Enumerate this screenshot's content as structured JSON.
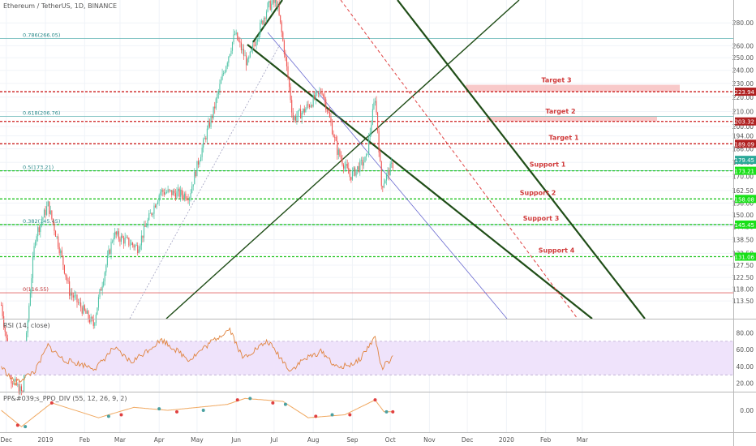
{
  "header": {
    "symbol": "Ethereum / TetherUS, 1D, BINANCE"
  },
  "colors": {
    "candle_up": "#4fc3a6",
    "candle_down": "#ef5350",
    "resistance": "#cc1f1f",
    "support": "#22c422",
    "trend_dark": "#1f4d17",
    "fib": "#5fb3b3",
    "rsi_line": "#e0843f",
    "rsi_band": "#efe3fb",
    "ppo_line": "#f0a860"
  },
  "chart_data": [
    {
      "type": "candlestick",
      "title": "Ethereum / TetherUS, 1D, BINANCE",
      "x_labels": [
        "Dec",
        "2019",
        "Feb",
        "Mar",
        "Apr",
        "May",
        "Jun",
        "Jul",
        "Aug",
        "Sep",
        "Oct",
        "Nov",
        "Dec",
        "2020",
        "Feb",
        "Mar"
      ],
      "y_axis": {
        "scale": "log",
        "ylim": [
          111,
          300
        ],
        "ticks": [
          280.0,
          260.0,
          250.0,
          240.0,
          230.0,
          220.0,
          210.0,
          200.0,
          194.0,
          186.0,
          178.0,
          170.0,
          162.5,
          156.0,
          150.0,
          144.5,
          138.5,
          132.5,
          127.5,
          122.5,
          118.0,
          113.5
        ]
      },
      "close_series_approx": [
        {
          "t": "2018-11-27",
          "v": 112
        },
        {
          "t": "2018-12-05",
          "v": 88
        },
        {
          "t": "2018-12-14",
          "v": 84
        },
        {
          "t": "2018-12-24",
          "v": 140
        },
        {
          "t": "2019-01-03",
          "v": 155
        },
        {
          "t": "2019-01-20",
          "v": 117
        },
        {
          "t": "2019-02-08",
          "v": 105
        },
        {
          "t": "2019-02-24",
          "v": 141
        },
        {
          "t": "2019-03-15",
          "v": 135
        },
        {
          "t": "2019-04-02",
          "v": 162
        },
        {
          "t": "2019-04-25",
          "v": 160
        },
        {
          "t": "2019-05-14",
          "v": 210
        },
        {
          "t": "2019-05-31",
          "v": 270
        },
        {
          "t": "2019-06-10",
          "v": 245
        },
        {
          "t": "2019-06-26",
          "v": 295
        },
        {
          "t": "2019-07-03",
          "v": 300
        },
        {
          "t": "2019-07-16",
          "v": 205
        },
        {
          "t": "2019-07-24",
          "v": 210
        },
        {
          "t": "2019-08-08",
          "v": 225
        },
        {
          "t": "2019-08-20",
          "v": 185
        },
        {
          "t": "2019-08-30",
          "v": 170
        },
        {
          "t": "2019-09-12",
          "v": 180
        },
        {
          "t": "2019-09-19",
          "v": 220
        },
        {
          "t": "2019-09-24",
          "v": 165
        },
        {
          "t": "2019-10-03",
          "v": 177
        }
      ],
      "price_labels": [
        {
          "value": "223.94",
          "kind": "resistance"
        },
        {
          "value": "203.32",
          "kind": "resistance"
        },
        {
          "value": "189.09",
          "kind": "resistance"
        },
        {
          "value": "179.45",
          "kind": "current"
        },
        {
          "value": "173.21",
          "kind": "support"
        },
        {
          "value": "158.08",
          "kind": "support"
        },
        {
          "value": "145.45",
          "kind": "support"
        },
        {
          "value": "131.06",
          "kind": "support"
        }
      ],
      "fib_levels": [
        {
          "text": "0.786(266.05)",
          "price": 266.05
        },
        {
          "text": "0.618(206.76)",
          "price": 206.76
        },
        {
          "text": "0.5(173.21)",
          "price": 173.21
        },
        {
          "text": "0.382(145.45)",
          "price": 145.45
        },
        {
          "text": "0(116.55)",
          "price": 116.55
        }
      ],
      "resistance_levels": [
        {
          "text": "Target 3",
          "price": 223.94
        },
        {
          "text": "Target 2",
          "price": 203.32
        },
        {
          "text": "Target 1",
          "price": 189.09
        }
      ],
      "support_levels": [
        {
          "text": "Support 1",
          "price": 173.21
        },
        {
          "text": "Support 2",
          "price": 158.08
        },
        {
          "text": "Support 3",
          "price": 145.45
        },
        {
          "text": "Support 4",
          "price": 131.06
        }
      ]
    },
    {
      "type": "line",
      "title": "RSI (14, close)",
      "ylim": [
        10,
        95
      ],
      "ticks": [
        80.0,
        60.0,
        40.0,
        20.0
      ],
      "band": [
        30,
        70
      ],
      "series_approx": [
        {
          "t": "2018-11-27",
          "v": 40
        },
        {
          "t": "2018-12-08",
          "v": 20
        },
        {
          "t": "2018-12-24",
          "v": 35
        },
        {
          "t": "2019-01-03",
          "v": 65
        },
        {
          "t": "2019-01-15",
          "v": 48
        },
        {
          "t": "2019-02-10",
          "v": 38
        },
        {
          "t": "2019-02-24",
          "v": 62
        },
        {
          "t": "2019-03-10",
          "v": 45
        },
        {
          "t": "2019-04-03",
          "v": 72
        },
        {
          "t": "2019-04-25",
          "v": 48
        },
        {
          "t": "2019-05-13",
          "v": 70
        },
        {
          "t": "2019-05-27",
          "v": 85
        },
        {
          "t": "2019-06-06",
          "v": 50
        },
        {
          "t": "2019-06-26",
          "v": 70
        },
        {
          "t": "2019-07-14",
          "v": 35
        },
        {
          "t": "2019-07-24",
          "v": 48
        },
        {
          "t": "2019-08-08",
          "v": 58
        },
        {
          "t": "2019-08-20",
          "v": 38
        },
        {
          "t": "2019-09-05",
          "v": 45
        },
        {
          "t": "2019-09-19",
          "v": 75
        },
        {
          "t": "2019-09-24",
          "v": 38
        },
        {
          "t": "2019-10-03",
          "v": 50
        }
      ]
    },
    {
      "type": "line",
      "title": "PP&#039;s_PPO_DIV (55, 12, 26, 9, 2)",
      "ylim": [
        -12,
        12
      ],
      "ticks": [
        0.0
      ],
      "series_approx": [
        {
          "t": "2018-11-27",
          "v": 0
        },
        {
          "t": "2018-12-13",
          "v": -11
        },
        {
          "t": "2019-01-06",
          "v": 5
        },
        {
          "t": "2019-02-12",
          "v": -5
        },
        {
          "t": "2019-03-12",
          "v": 2
        },
        {
          "t": "2019-04-08",
          "v": 0
        },
        {
          "t": "2019-05-25",
          "v": 4
        },
        {
          "t": "2019-06-08",
          "v": 8
        },
        {
          "t": "2019-07-08",
          "v": 6
        },
        {
          "t": "2019-07-28",
          "v": -5
        },
        {
          "t": "2019-08-26",
          "v": -3
        },
        {
          "t": "2019-09-19",
          "v": 7
        },
        {
          "t": "2019-09-26",
          "v": -1
        },
        {
          "t": "2019-10-03",
          "v": -1
        }
      ]
    }
  ]
}
